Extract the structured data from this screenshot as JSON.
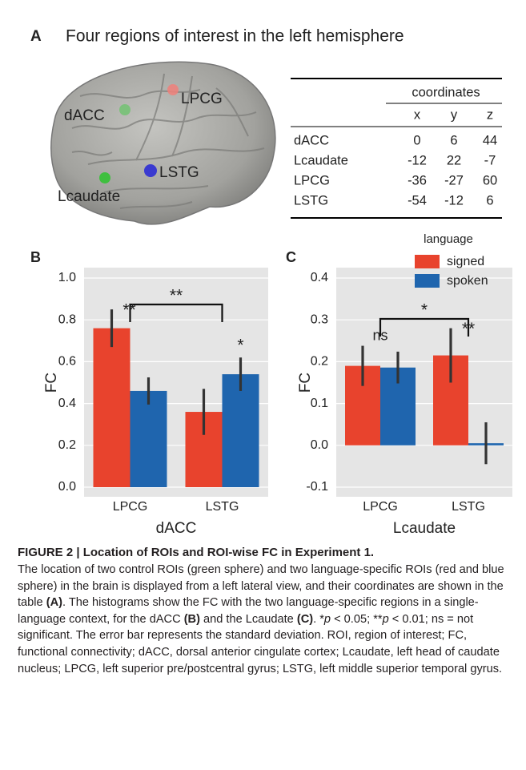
{
  "panel_a": {
    "label": "A",
    "title": "Four regions of interest in the left hemisphere",
    "brain_labels": [
      "dACC",
      "LPCG",
      "LSTG",
      "Lcaudate"
    ],
    "table": {
      "group_header": "coordinates",
      "columns": [
        "x",
        "y",
        "z"
      ],
      "rows": [
        [
          "dACC",
          "0",
          "6",
          "44"
        ],
        [
          "Lcaudate",
          "-12",
          "22",
          "-7"
        ],
        [
          "LPCG",
          "-36",
          "-27",
          "60"
        ],
        [
          "LSTG",
          "-54",
          "-12",
          "6"
        ]
      ]
    }
  },
  "chart_data": [
    {
      "type": "bar",
      "panel": "B",
      "xlabel": "dACC",
      "ylabel": "FC",
      "categories": [
        "LPCG",
        "LSTG"
      ],
      "series": [
        {
          "color": "#e8432d",
          "values": [
            0.76,
            0.36
          ],
          "error": [
            0.09,
            0.11
          ]
        },
        {
          "color": "#1f65ae",
          "values": [
            0.46,
            0.54
          ],
          "error": [
            0.065,
            0.08
          ]
        }
      ],
      "ylim": [
        0,
        1
      ],
      "yticks": [
        {
          "value": 0,
          "label": "0.0"
        },
        0.2,
        0.4,
        0.6,
        0.8,
        {
          "value": 1,
          "label": "1.0"
        }
      ],
      "annotations": [
        "**",
        "**",
        "*"
      ]
    },
    {
      "type": "bar",
      "panel": "C",
      "xlabel": "Lcaudate",
      "ylabel": "FC",
      "categories": [
        "LPCG",
        "LSTG"
      ],
      "legend_title": "language",
      "series": [
        {
          "name": "signed",
          "color": "#e8432d",
          "values": [
            0.19,
            0.215
          ],
          "error": [
            0.048,
            0.065
          ]
        },
        {
          "name": "spoken",
          "color": "#1f65ae",
          "values": [
            0.186,
            0.005
          ],
          "error": [
            0.038,
            0.05
          ]
        }
      ],
      "ylim": [
        -0.1,
        0.4
      ],
      "yticks": [
        -0.1,
        {
          "value": 0,
          "label": "0.0"
        },
        0.1,
        0.2,
        0.3,
        0.4
      ],
      "annotations": [
        "*",
        "ns",
        "**"
      ]
    }
  ],
  "caption": {
    "title": "FIGURE 2 | Location of ROIs and ROI-wise FC in Experiment 1.",
    "body": [
      "The location of two control ROIs (green sphere) and two language-specific ROIs (red and blue sphere) in the brain is displayed from a left lateral view, and their coordinates are shown in the table ",
      "(A)",
      ". The histograms show the FC with the two language-specific regions in a single-language context, for the dACC ",
      "(B)",
      " and the Lcaudate ",
      "(C)",
      ". *",
      "p",
      " < 0.05; **",
      "p",
      " < 0.01; ns = not significant. The error bar represents the standard deviation. ROI, region of interest; FC, functional connectivity; dACC, dorsal anterior cingulate cortex; Lcaudate, left head of caudate nucleus; LPCG, left superior pre/postcentral gyrus; LSTG, left middle superior temporal gyrus."
    ]
  }
}
